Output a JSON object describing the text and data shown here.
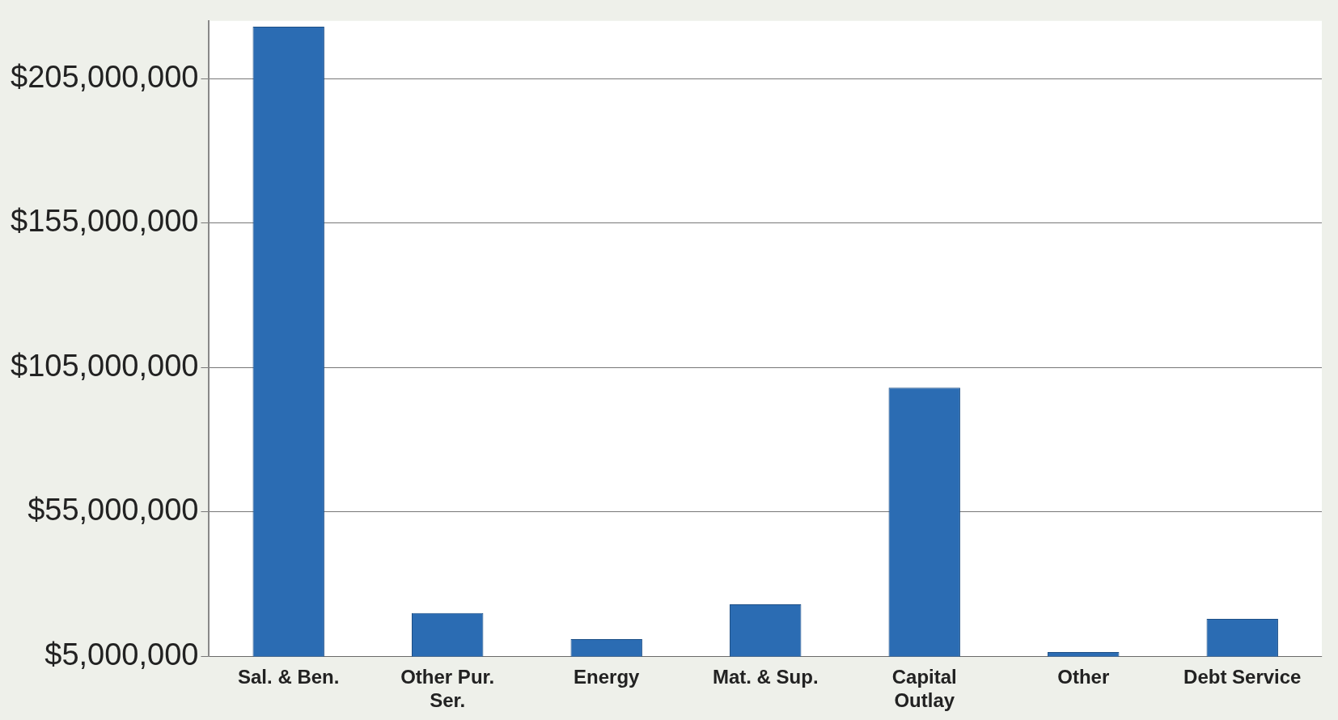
{
  "chart_data": {
    "type": "bar",
    "categories": [
      "Sal. & Ben.",
      "Other Pur. Ser.",
      "Energy",
      "Mat. & Sup.",
      "Capital Outlay",
      "Other",
      "Debt Service"
    ],
    "values": [
      223000000,
      20000000,
      11000000,
      23000000,
      98000000,
      6500000,
      18000000
    ],
    "color": "#2b6cb3",
    "ylim": [
      5000000,
      225000000
    ],
    "yticks": [
      {
        "value": 5000000,
        "label": "$5,000,000"
      },
      {
        "value": 55000000,
        "label": "$55,000,000"
      },
      {
        "value": 105000000,
        "label": "$105,000,000"
      },
      {
        "value": 155000000,
        "label": "$155,000,000"
      },
      {
        "value": 205000000,
        "label": "$205,000,000"
      }
    ],
    "grid": "y"
  }
}
